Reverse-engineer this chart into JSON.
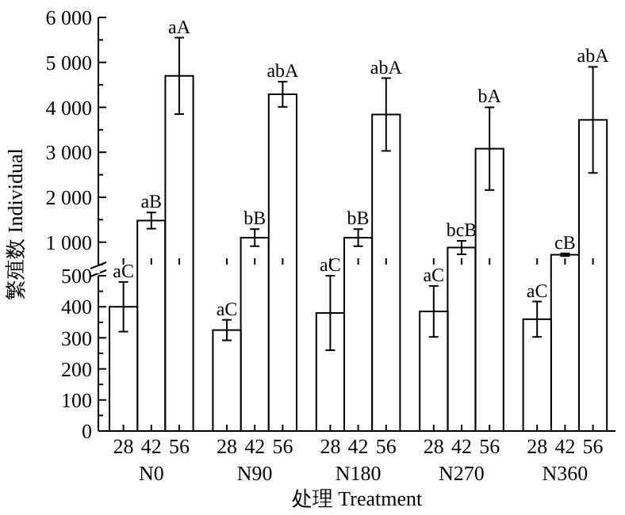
{
  "chart_data": [
    {
      "type": "bar",
      "ylabel": "繁殖数 Individual",
      "categories": [
        "28",
        "42",
        "56",
        "28",
        "42",
        "56",
        "28",
        "42",
        "56",
        "28",
        "42",
        "56",
        "28",
        "42",
        "56"
      ],
      "series": [
        {
          "color": "#ffffff",
          "values": [
            null,
            1480,
            4700,
            null,
            1100,
            4290,
            null,
            1100,
            3840,
            null,
            880,
            3080,
            null,
            720,
            3720
          ],
          "errors": [
            null,
            180,
            850,
            null,
            190,
            280,
            null,
            190,
            810,
            null,
            150,
            920,
            null,
            30,
            1180
          ],
          "value_labels": [
            null,
            "aB",
            "aA",
            null,
            "bB",
            "abA",
            null,
            "bB",
            "abA",
            null,
            "bcB",
            "bA",
            null,
            "cB",
            "abA"
          ]
        }
      ],
      "ylim": [
        500,
        6000
      ],
      "yticks": [
        {
          "value": 500,
          "label": null
        },
        {
          "value": 1000,
          "label": "1 000"
        },
        {
          "value": 1500,
          "label": null
        },
        {
          "value": 2000,
          "label": "2 000"
        },
        {
          "value": 2500,
          "label": null
        },
        {
          "value": 3000,
          "label": "3 000"
        },
        {
          "value": 3500,
          "label": null
        },
        {
          "value": 4000,
          "label": "4 000"
        },
        {
          "value": 4500,
          "label": null
        },
        {
          "value": 5000,
          "label": "5 000"
        },
        {
          "value": 5500,
          "label": null
        },
        {
          "value": 6000,
          "label": "6 000"
        }
      ],
      "tick_labels": "y"
    },
    {
      "type": "bar",
      "xlabel": "处理 Treatment",
      "categories": [
        "28",
        "42",
        "56",
        "28",
        "42",
        "56",
        "28",
        "42",
        "56",
        "28",
        "42",
        "56",
        "28",
        "42",
        "56"
      ],
      "series": [
        {
          "color": "#ffffff",
          "values": [
            400,
            null,
            null,
            325,
            null,
            null,
            380,
            null,
            null,
            385,
            null,
            null,
            360,
            null,
            null
          ],
          "errors": [
            80,
            null,
            null,
            33,
            null,
            null,
            120,
            null,
            null,
            82,
            null,
            null,
            57,
            null,
            null
          ],
          "value_labels": [
            "aC",
            null,
            null,
            "aC",
            null,
            null,
            "aC",
            null,
            null,
            "aC",
            null,
            null,
            "aC",
            null,
            null
          ]
        }
      ],
      "ylim": [
        0,
        500
      ],
      "yticks": [
        0,
        {
          "value": 50,
          "label": null
        },
        100,
        {
          "value": 150,
          "label": null
        },
        200,
        {
          "value": 250,
          "label": null
        },
        300,
        {
          "value": 350,
          "label": null
        },
        400,
        {
          "value": 450,
          "label": null
        },
        500
      ],
      "annotations": [
        "N0",
        "N90",
        "N180",
        "N270",
        "N360"
      ]
    }
  ]
}
